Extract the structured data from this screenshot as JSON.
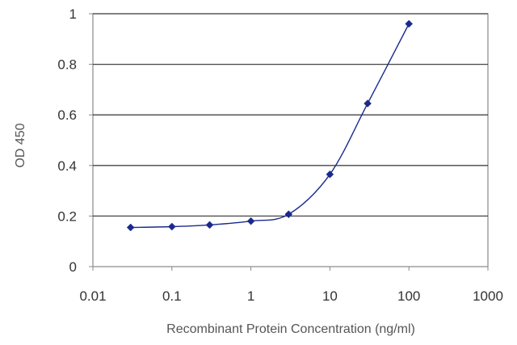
{
  "chart_data": {
    "type": "line",
    "title": "",
    "xlabel": "Recombinant Protein Concentration (ng/ml)",
    "ylabel": "OD 450",
    "x_scale": "log",
    "xlim": [
      0.01,
      1000
    ],
    "ylim": [
      0,
      1
    ],
    "grid": "horizontal",
    "x_ticks": [
      0.01,
      0.1,
      1,
      10,
      100,
      1000
    ],
    "x_tick_labels": [
      "0.01",
      "0.1",
      "1",
      "10",
      "100",
      "1000"
    ],
    "y_ticks": [
      0,
      0.2,
      0.4,
      0.6,
      0.8,
      1
    ],
    "y_tick_labels": [
      "0",
      "0.2",
      "0.4",
      "0.6",
      "0.8",
      "1"
    ],
    "series": [
      {
        "color": "#1a2a8c",
        "marker": "diamond",
        "x": [
          0.03,
          0.1,
          0.3,
          1,
          3,
          10,
          30,
          100
        ],
        "y": [
          0.155,
          0.158,
          0.165,
          0.18,
          0.207,
          0.365,
          0.645,
          0.96
        ]
      }
    ]
  },
  "colors": {
    "plot_area_border": "#888888",
    "grid": "#444444",
    "series_line": "#1a2a8c"
  }
}
